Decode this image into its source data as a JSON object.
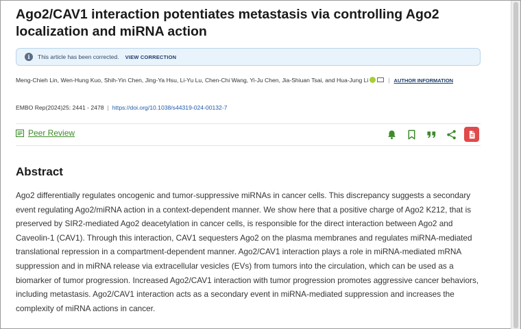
{
  "article": {
    "title": "Ago2/CAV1 interaction potentiates metastasis via controlling Ago2 localization and miRNA action"
  },
  "notice": {
    "icon": "info-icon",
    "message": "This article has been corrected.",
    "link_label": "VIEW CORRECTION"
  },
  "authors": {
    "list": "Meng-Chieh Lin, Wen-Hung Kuo, Shih-Yin Chen, Jing-Ya Hsu, Li-Yu Lu, Chen-Chi Wang, Yi-Ju Chen, Jia-Shiuan Tsai, and Hua-Jung Li",
    "author_info_label": "AUTHOR INFORMATION"
  },
  "citation": {
    "journal": "EMBO Rep",
    "details": "(2024)25: 2441 - 2478",
    "doi": "https://doi.org/10.1038/s44319-024-00132-7"
  },
  "peer_review": {
    "label": "Peer Review"
  },
  "actions": [
    {
      "name": "alert-bell",
      "icon": "bell-icon"
    },
    {
      "name": "bookmark",
      "icon": "bookmark-icon"
    },
    {
      "name": "cite",
      "icon": "quote-icon"
    },
    {
      "name": "share",
      "icon": "share-icon"
    },
    {
      "name": "pdf",
      "icon": "pdf-icon"
    }
  ],
  "colors": {
    "accent_green": "#3d8b2a",
    "pdf_red": "#e04a4a",
    "link_blue": "#1f5aa8",
    "notice_bg": "#e9f3fb"
  },
  "abstract": {
    "heading": "Abstract",
    "text": "Ago2 differentially regulates oncogenic and tumor-suppressive miRNAs in cancer cells. This discrepancy suggests a secondary event regulating Ago2/miRNA action in a context-dependent manner. We show here that a positive charge of Ago2 K212, that is preserved by SIR2-mediated Ago2 deacetylation in cancer cells, is responsible for the direct interaction between Ago2 and Caveolin-1 (CAV1). Through this interaction, CAV1 sequesters Ago2 on the plasma membranes and regulates miRNA-mediated translational repression in a compartment-dependent manner. Ago2/CAV1 interaction plays a role in miRNA-mediated mRNA suppression and in miRNA release via extracellular vesicles (EVs) from tumors into the circulation, which can be used as a biomarker of tumor progression. Increased Ago2/CAV1 interaction with tumor progression promotes aggressive cancer behaviors, including metastasis. Ago2/CAV1 interaction acts as a secondary event in miRNA-mediated suppression and increases the complexity of miRNA actions in cancer."
  }
}
